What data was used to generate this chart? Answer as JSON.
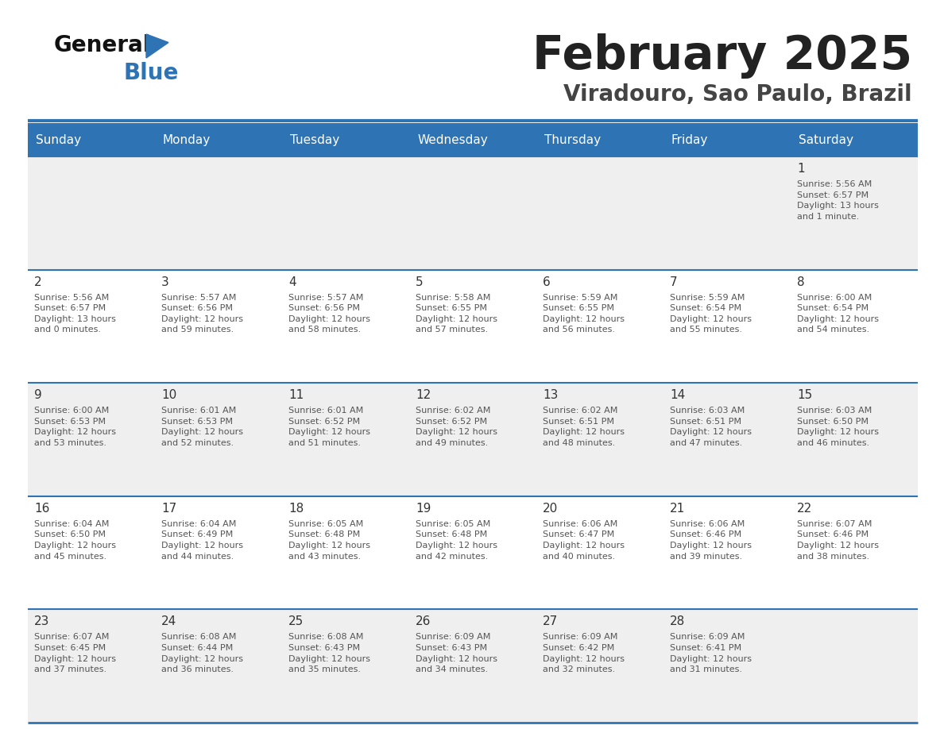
{
  "title": "February 2025",
  "subtitle": "Viradouro, Sao Paulo, Brazil",
  "days_of_week": [
    "Sunday",
    "Monday",
    "Tuesday",
    "Wednesday",
    "Thursday",
    "Friday",
    "Saturday"
  ],
  "header_bg": "#2E74B5",
  "header_text": "#FFFFFF",
  "row_bg_odd": "#EFEFEF",
  "row_bg_even": "#FFFFFF",
  "separator_color": "#2E74B5",
  "cell_text_color": "#555555",
  "day_number_color": "#333333",
  "title_color": "#222222",
  "subtitle_color": "#444444",
  "logo_general_color": "#111111",
  "logo_blue_color": "#2E74B5",
  "logo_triangle_color": "#2E74B5",
  "weeks": [
    {
      "days": [
        {
          "date": "",
          "info": ""
        },
        {
          "date": "",
          "info": ""
        },
        {
          "date": "",
          "info": ""
        },
        {
          "date": "",
          "info": ""
        },
        {
          "date": "",
          "info": ""
        },
        {
          "date": "",
          "info": ""
        },
        {
          "date": "1",
          "info": "Sunrise: 5:56 AM\nSunset: 6:57 PM\nDaylight: 13 hours\nand 1 minute."
        }
      ]
    },
    {
      "days": [
        {
          "date": "2",
          "info": "Sunrise: 5:56 AM\nSunset: 6:57 PM\nDaylight: 13 hours\nand 0 minutes."
        },
        {
          "date": "3",
          "info": "Sunrise: 5:57 AM\nSunset: 6:56 PM\nDaylight: 12 hours\nand 59 minutes."
        },
        {
          "date": "4",
          "info": "Sunrise: 5:57 AM\nSunset: 6:56 PM\nDaylight: 12 hours\nand 58 minutes."
        },
        {
          "date": "5",
          "info": "Sunrise: 5:58 AM\nSunset: 6:55 PM\nDaylight: 12 hours\nand 57 minutes."
        },
        {
          "date": "6",
          "info": "Sunrise: 5:59 AM\nSunset: 6:55 PM\nDaylight: 12 hours\nand 56 minutes."
        },
        {
          "date": "7",
          "info": "Sunrise: 5:59 AM\nSunset: 6:54 PM\nDaylight: 12 hours\nand 55 minutes."
        },
        {
          "date": "8",
          "info": "Sunrise: 6:00 AM\nSunset: 6:54 PM\nDaylight: 12 hours\nand 54 minutes."
        }
      ]
    },
    {
      "days": [
        {
          "date": "9",
          "info": "Sunrise: 6:00 AM\nSunset: 6:53 PM\nDaylight: 12 hours\nand 53 minutes."
        },
        {
          "date": "10",
          "info": "Sunrise: 6:01 AM\nSunset: 6:53 PM\nDaylight: 12 hours\nand 52 minutes."
        },
        {
          "date": "11",
          "info": "Sunrise: 6:01 AM\nSunset: 6:52 PM\nDaylight: 12 hours\nand 51 minutes."
        },
        {
          "date": "12",
          "info": "Sunrise: 6:02 AM\nSunset: 6:52 PM\nDaylight: 12 hours\nand 49 minutes."
        },
        {
          "date": "13",
          "info": "Sunrise: 6:02 AM\nSunset: 6:51 PM\nDaylight: 12 hours\nand 48 minutes."
        },
        {
          "date": "14",
          "info": "Sunrise: 6:03 AM\nSunset: 6:51 PM\nDaylight: 12 hours\nand 47 minutes."
        },
        {
          "date": "15",
          "info": "Sunrise: 6:03 AM\nSunset: 6:50 PM\nDaylight: 12 hours\nand 46 minutes."
        }
      ]
    },
    {
      "days": [
        {
          "date": "16",
          "info": "Sunrise: 6:04 AM\nSunset: 6:50 PM\nDaylight: 12 hours\nand 45 minutes."
        },
        {
          "date": "17",
          "info": "Sunrise: 6:04 AM\nSunset: 6:49 PM\nDaylight: 12 hours\nand 44 minutes."
        },
        {
          "date": "18",
          "info": "Sunrise: 6:05 AM\nSunset: 6:48 PM\nDaylight: 12 hours\nand 43 minutes."
        },
        {
          "date": "19",
          "info": "Sunrise: 6:05 AM\nSunset: 6:48 PM\nDaylight: 12 hours\nand 42 minutes."
        },
        {
          "date": "20",
          "info": "Sunrise: 6:06 AM\nSunset: 6:47 PM\nDaylight: 12 hours\nand 40 minutes."
        },
        {
          "date": "21",
          "info": "Sunrise: 6:06 AM\nSunset: 6:46 PM\nDaylight: 12 hours\nand 39 minutes."
        },
        {
          "date": "22",
          "info": "Sunrise: 6:07 AM\nSunset: 6:46 PM\nDaylight: 12 hours\nand 38 minutes."
        }
      ]
    },
    {
      "days": [
        {
          "date": "23",
          "info": "Sunrise: 6:07 AM\nSunset: 6:45 PM\nDaylight: 12 hours\nand 37 minutes."
        },
        {
          "date": "24",
          "info": "Sunrise: 6:08 AM\nSunset: 6:44 PM\nDaylight: 12 hours\nand 36 minutes."
        },
        {
          "date": "25",
          "info": "Sunrise: 6:08 AM\nSunset: 6:43 PM\nDaylight: 12 hours\nand 35 minutes."
        },
        {
          "date": "26",
          "info": "Sunrise: 6:09 AM\nSunset: 6:43 PM\nDaylight: 12 hours\nand 34 minutes."
        },
        {
          "date": "27",
          "info": "Sunrise: 6:09 AM\nSunset: 6:42 PM\nDaylight: 12 hours\nand 32 minutes."
        },
        {
          "date": "28",
          "info": "Sunrise: 6:09 AM\nSunset: 6:41 PM\nDaylight: 12 hours\nand 31 minutes."
        },
        {
          "date": "",
          "info": ""
        }
      ]
    }
  ]
}
